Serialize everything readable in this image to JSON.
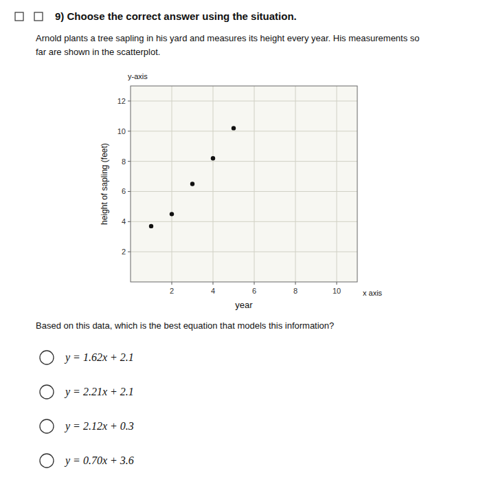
{
  "chart_data": {
    "type": "scatter",
    "title": "9) Choose the correct answer using the situation.",
    "x_label": "year",
    "y_label": "height of sapling (feet)",
    "annotations": [
      "Arnold plants a tree sapling in his yard and measures its height every year. His measurements so",
      "far are shown in the scatterplot.",
      "y-axis",
      "x axis",
      "Based on this data, which is the best equation that models this information?",
      "y = 1.62x + 2.1",
      "y = 2.21x + 2.1",
      "y = 2.12x + 0.3",
      "y = 0.70x + 3.6"
    ],
    "x": [
      1,
      2,
      3,
      4,
      5
    ],
    "values": [
      3.7,
      4.5,
      6.5,
      8.2,
      10.2
    ],
    "color": "#111111",
    "xlim": [
      0,
      11
    ],
    "ylim": [
      0,
      13
    ],
    "xticks": [
      2,
      4,
      6,
      8,
      10
    ],
    "yticks": [
      2,
      4,
      6,
      8,
      10,
      12
    ],
    "grid": true
  }
}
